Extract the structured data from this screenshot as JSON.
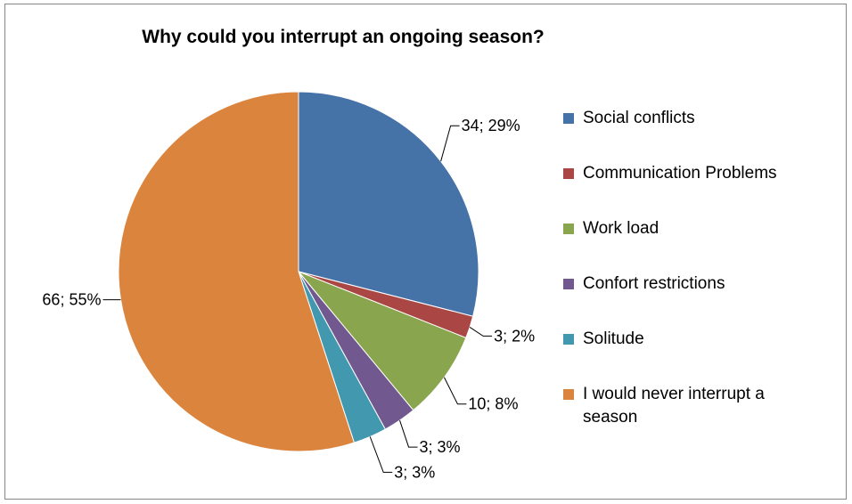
{
  "chart_data": {
    "type": "pie",
    "title": "Why could you interrupt an ongoing season?",
    "slices": [
      {
        "label": "Social conflicts",
        "value": 34,
        "percent": 29,
        "data_label": "34; 29%",
        "color": "#4572A7"
      },
      {
        "label": "Communication Problems",
        "value": 3,
        "percent": 2,
        "data_label": "3; 2%",
        "color": "#AA4643"
      },
      {
        "label": "Work load",
        "value": 10,
        "percent": 8,
        "data_label": "10; 8%",
        "color": "#89A54E"
      },
      {
        "label": "Confort restrictions",
        "value": 3,
        "percent": 3,
        "data_label": "3; 3%",
        "color": "#71588F"
      },
      {
        "label": "Solitude",
        "value": 3,
        "percent": 3,
        "data_label": "3; 3%",
        "color": "#4198AF"
      },
      {
        "label": "I would never interrupt a season",
        "value": 66,
        "percent": 55,
        "data_label": "66; 55%",
        "color": "#DB843D"
      }
    ],
    "legend_position": "right"
  }
}
